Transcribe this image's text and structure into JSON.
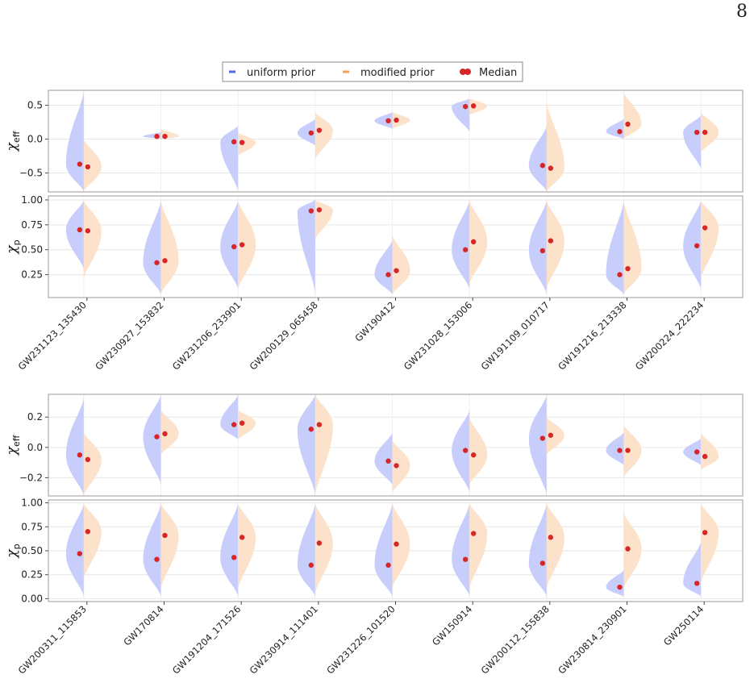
{
  "page_number": "8",
  "legend": {
    "uniform_label": "uniform prior",
    "modified_label": "modified prior",
    "median_label": "Median"
  },
  "colors": {
    "uniform": "#c5cbfc",
    "modified": "#fde0c8",
    "uniform_line": "#5566ee",
    "modified_line": "#f5a050",
    "median": "#d62728",
    "grid": "#e6e6e6",
    "frame": "#999999"
  },
  "chart_data": [
    {
      "type": "violin",
      "ylabel_main": "χ",
      "ylabel_sub": "eff",
      "ylim": [
        -0.78,
        0.72
      ],
      "yticks": [
        "0.5",
        "0.0",
        "−0.5"
      ],
      "ytick_values": [
        0.5,
        0.0,
        -0.5
      ],
      "grid": true,
      "categories": [
        "GW231123_135430",
        "GW230927_153832",
        "GW231206_233901",
        "GW200129_065458",
        "GW190412",
        "GW231028_153006",
        "GW191109_010717",
        "GW191216_213338",
        "GW200224_222234"
      ],
      "uniform_median": [
        -0.37,
        0.04,
        -0.04,
        0.09,
        0.27,
        0.48,
        -0.39,
        0.11,
        0.1
      ],
      "modified_median": [
        -0.41,
        0.04,
        -0.05,
        0.13,
        0.28,
        0.49,
        -0.43,
        0.22,
        0.1
      ],
      "uniform_range": [
        [
          -0.78,
          0.72
        ],
        [
          0.0,
          0.1
        ],
        [
          -0.78,
          0.2
        ],
        [
          -0.1,
          0.3
        ],
        [
          0.15,
          0.4
        ],
        [
          0.1,
          0.6
        ],
        [
          -0.78,
          0.2
        ],
        [
          0.0,
          0.3
        ],
        [
          -0.45,
          0.35
        ]
      ],
      "modified_range": [
        [
          -0.78,
          0.0
        ],
        [
          0.0,
          0.15
        ],
        [
          -0.25,
          0.1
        ],
        [
          -0.3,
          0.4
        ],
        [
          0.15,
          0.4
        ],
        [
          0.35,
          0.6
        ],
        [
          -0.78,
          0.55
        ],
        [
          0.0,
          0.7
        ],
        [
          -0.2,
          0.4
        ]
      ]
    },
    {
      "type": "violin",
      "ylabel_main": "χ",
      "ylabel_sub": "p",
      "ylim": [
        0.02,
        1.04
      ],
      "yticks": [
        "1.00",
        "0.75",
        "0.50",
        "0.25"
      ],
      "ytick_values": [
        1.0,
        0.75,
        0.5,
        0.25
      ],
      "grid": true,
      "categories": [
        "GW231123_135430",
        "GW230927_153832",
        "GW231206_233901",
        "GW200129_065458",
        "GW190412",
        "GW231028_153006",
        "GW191109_010717",
        "GW191216_213338",
        "GW200224_222234"
      ],
      "uniform_median": [
        0.7,
        0.37,
        0.53,
        0.89,
        0.25,
        0.5,
        0.49,
        0.25,
        0.54
      ],
      "modified_median": [
        0.69,
        0.39,
        0.55,
        0.9,
        0.29,
        0.58,
        0.59,
        0.31,
        0.72
      ],
      "uniform_range": [
        [
          0.3,
          1.0
        ],
        [
          0.05,
          1.0
        ],
        [
          0.1,
          1.0
        ],
        [
          0.05,
          1.0
        ],
        [
          0.05,
          0.6
        ],
        [
          0.1,
          1.0
        ],
        [
          0.05,
          1.0
        ],
        [
          0.05,
          1.0
        ],
        [
          0.1,
          1.0
        ]
      ],
      "modified_range": [
        [
          0.2,
          1.0
        ],
        [
          0.05,
          1.0
        ],
        [
          0.1,
          1.0
        ],
        [
          0.6,
          1.0
        ],
        [
          0.05,
          0.65
        ],
        [
          0.15,
          1.0
        ],
        [
          0.1,
          1.0
        ],
        [
          0.05,
          1.0
        ],
        [
          0.2,
          1.0
        ]
      ]
    },
    {
      "type": "violin",
      "ylabel_main": "χ",
      "ylabel_sub": "eff",
      "ylim": [
        -0.32,
        0.35
      ],
      "yticks": [
        "0.2",
        "0.0",
        "−0.2"
      ],
      "ytick_values": [
        0.2,
        0.0,
        -0.2
      ],
      "grid": true,
      "categories": [
        "GW200311_115853",
        "GW170814",
        "GW191204_171526",
        "GW230914_111401",
        "GW231226_101520",
        "GW150914",
        "GW200112_155838",
        "GW230814_230901",
        "GW250114"
      ],
      "uniform_median": [
        -0.05,
        0.07,
        0.15,
        0.12,
        -0.09,
        -0.02,
        0.06,
        -0.02,
        -0.03
      ],
      "modified_median": [
        -0.08,
        0.09,
        0.16,
        0.15,
        -0.12,
        -0.05,
        0.08,
        -0.02,
        -0.06
      ],
      "uniform_range": [
        [
          -0.32,
          0.33
        ],
        [
          -0.25,
          0.35
        ],
        [
          0.05,
          0.35
        ],
        [
          -0.32,
          0.35
        ],
        [
          -0.25,
          0.1
        ],
        [
          -0.3,
          0.25
        ],
        [
          -0.32,
          0.35
        ],
        [
          -0.12,
          0.1
        ],
        [
          -0.12,
          0.06
        ]
      ],
      "modified_range": [
        [
          -0.32,
          0.1
        ],
        [
          -0.05,
          0.25
        ],
        [
          0.05,
          0.25
        ],
        [
          -0.32,
          0.35
        ],
        [
          -0.3,
          0.05
        ],
        [
          -0.25,
          0.2
        ],
        [
          -0.05,
          0.2
        ],
        [
          -0.2,
          0.15
        ],
        [
          -0.15,
          0.1
        ]
      ]
    },
    {
      "type": "violin",
      "ylabel_main": "χ",
      "ylabel_sub": "p",
      "ylim": [
        -0.03,
        1.03
      ],
      "yticks": [
        "1.00",
        "0.75",
        "0.50",
        "0.25",
        "0.00"
      ],
      "ytick_values": [
        1.0,
        0.75,
        0.5,
        0.25,
        0.0
      ],
      "grid": true,
      "categories": [
        "GW200311_115853",
        "GW170814",
        "GW191204_171526",
        "GW230914_111401",
        "GW231226_101520",
        "GW150914",
        "GW200112_155838",
        "GW230814_230901",
        "GW250114"
      ],
      "uniform_median": [
        0.47,
        0.41,
        0.43,
        0.35,
        0.35,
        0.41,
        0.37,
        0.12,
        0.16
      ],
      "modified_median": [
        0.7,
        0.66,
        0.64,
        0.58,
        0.57,
        0.68,
        0.64,
        0.52,
        0.69
      ],
      "uniform_range": [
        [
          0.02,
          1.0
        ],
        [
          0.02,
          1.0
        ],
        [
          0.02,
          1.0
        ],
        [
          0.02,
          1.0
        ],
        [
          0.02,
          1.0
        ],
        [
          0.02,
          1.0
        ],
        [
          0.02,
          1.0
        ],
        [
          0.02,
          0.3
        ],
        [
          0.02,
          0.6
        ]
      ],
      "modified_range": [
        [
          0.2,
          1.0
        ],
        [
          0.1,
          1.0
        ],
        [
          0.1,
          1.0
        ],
        [
          0.05,
          1.0
        ],
        [
          0.1,
          1.0
        ],
        [
          0.1,
          1.0
        ],
        [
          0.1,
          1.0
        ],
        [
          0.1,
          0.9
        ],
        [
          0.15,
          1.0
        ]
      ]
    }
  ]
}
